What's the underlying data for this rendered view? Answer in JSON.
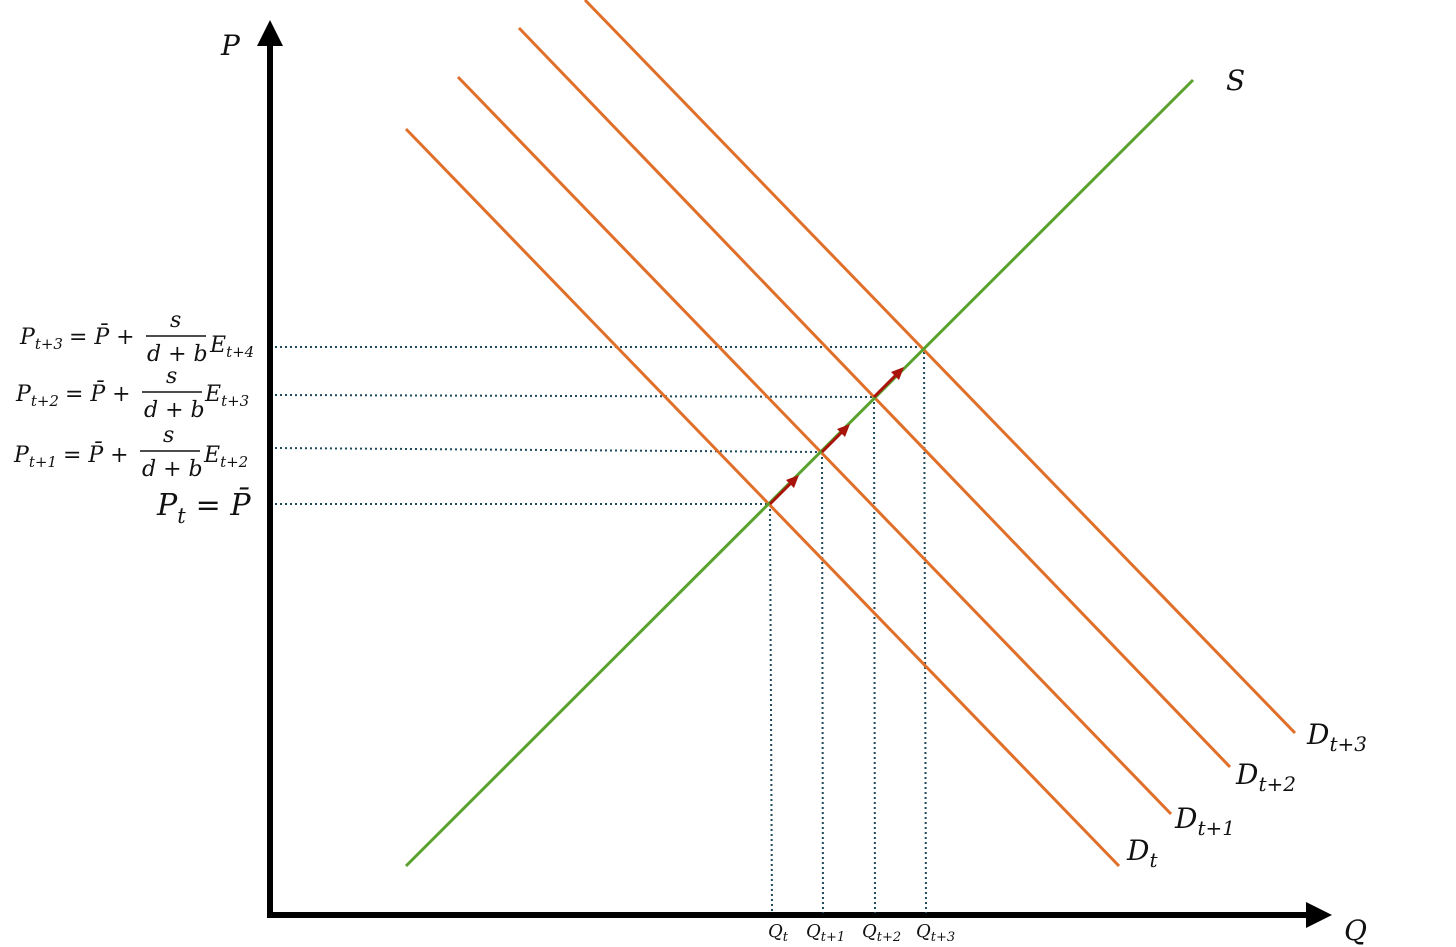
{
  "axes": {
    "y_label": "P",
    "x_label": "Q"
  },
  "supply": {
    "label": "S",
    "color": "#5aa22e"
  },
  "demand": {
    "color": "#e06f2a",
    "curves": [
      {
        "label": "D",
        "sub": "t"
      },
      {
        "label": "D",
        "sub": "t+1"
      },
      {
        "label": "D",
        "sub": "t+2"
      },
      {
        "label": "D",
        "sub": "t+3"
      }
    ]
  },
  "guides": {
    "color": "#1e4a5c"
  },
  "arrows": {
    "color": "#a8140c"
  },
  "price_labels": [
    {
      "lhs": "P",
      "sub": "t",
      "rhs": "= P̄"
    },
    {
      "lhs": "P",
      "sub": "t+1",
      "rhs": "= P̄ +",
      "num": "s",
      "den": "d + b",
      "tail": "E",
      "tail_sub": "t+2"
    },
    {
      "lhs": "P",
      "sub": "t+2",
      "rhs": "= P̄ +",
      "num": "s",
      "den": "d + b",
      "tail": "E",
      "tail_sub": "t+3"
    },
    {
      "lhs": "P",
      "sub": "t+3",
      "rhs": "= P̄ +",
      "num": "s",
      "den": "d + b",
      "tail": "E",
      "tail_sub": "t+4"
    }
  ],
  "quantity_labels": [
    {
      "label": "Q",
      "sub": "t"
    },
    {
      "label": "Q",
      "sub": "t+1"
    },
    {
      "label": "Q",
      "sub": "t+2"
    },
    {
      "label": "Q",
      "sub": "t+3"
    }
  ]
}
